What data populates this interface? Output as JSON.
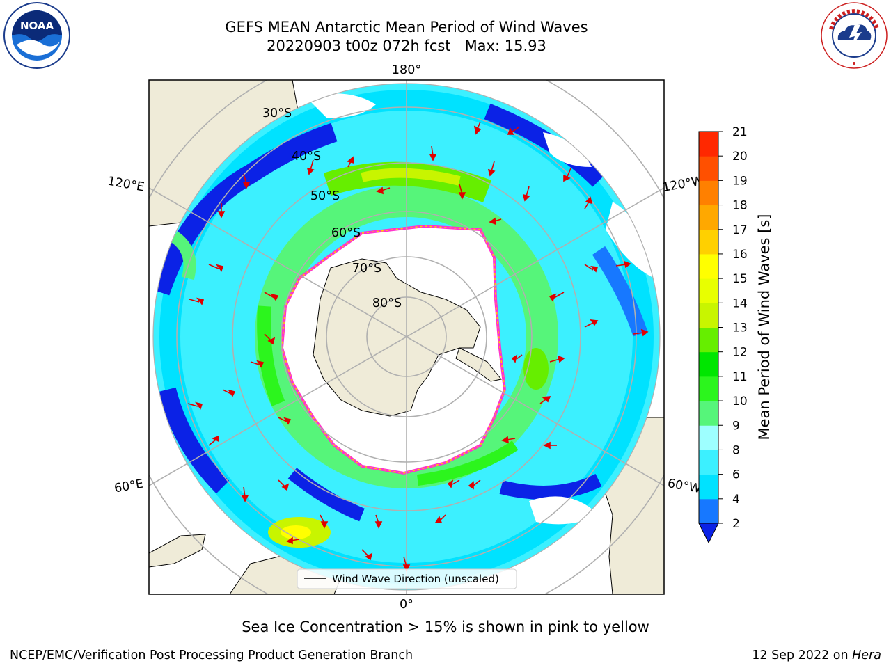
{
  "header": {
    "title_line1": "GEFS MEAN Antarctic Mean Period of Wind Waves",
    "title_line2": "20220903 t00z 072h fcst   Max: 15.93"
  },
  "logos": {
    "left": {
      "icon": "noaa-logo",
      "text": "NOAA"
    },
    "right": {
      "icon": "national-weather-service-logo",
      "text": "NATIONAL WEATHER SERVICE"
    }
  },
  "map": {
    "projection": "south-polar-stereographic",
    "longitude_labels": {
      "top": "180°",
      "bottom": "0°",
      "upper_left": "120°E",
      "upper_right": "120°W",
      "lower_left": "60°E",
      "lower_right": "60°W"
    },
    "latitude_labels": [
      "30°S",
      "40°S",
      "50°S",
      "60°S",
      "70°S",
      "80°S"
    ],
    "legend": {
      "label": "Wind Wave Direction (unscaled)"
    },
    "colors": {
      "land": "#efebd8",
      "ice_edge": "#ff33cc",
      "arrow": "#e00000",
      "grid": "#b0b0b0"
    }
  },
  "colorbar": {
    "label": "Mean Period of Wind Waves [s]",
    "ticks": [
      "2",
      "4",
      "6",
      "8",
      "9",
      "10",
      "11",
      "12",
      "13",
      "14",
      "15",
      "16",
      "17",
      "18",
      "19",
      "20",
      "21"
    ],
    "colors": [
      "#0b22e6",
      "#1778ff",
      "#00e2ff",
      "#3cf0ff",
      "#9effff",
      "#56f57a",
      "#2cf51d",
      "#00e600",
      "#66ee00",
      "#c8f500",
      "#e8ff00",
      "#ffff00",
      "#ffd000",
      "#ffa800",
      "#ff8000",
      "#ff5000",
      "#ff2800",
      "#ff0000"
    ],
    "extend": "min"
  },
  "caption": "Sea Ice Concentration > 15% is shown in pink to yellow",
  "footer": {
    "left": "NCEP/EMC/Verification Post Processing Product Generation Branch",
    "date": "12 Sep 2022 on ",
    "host": "Hera"
  }
}
